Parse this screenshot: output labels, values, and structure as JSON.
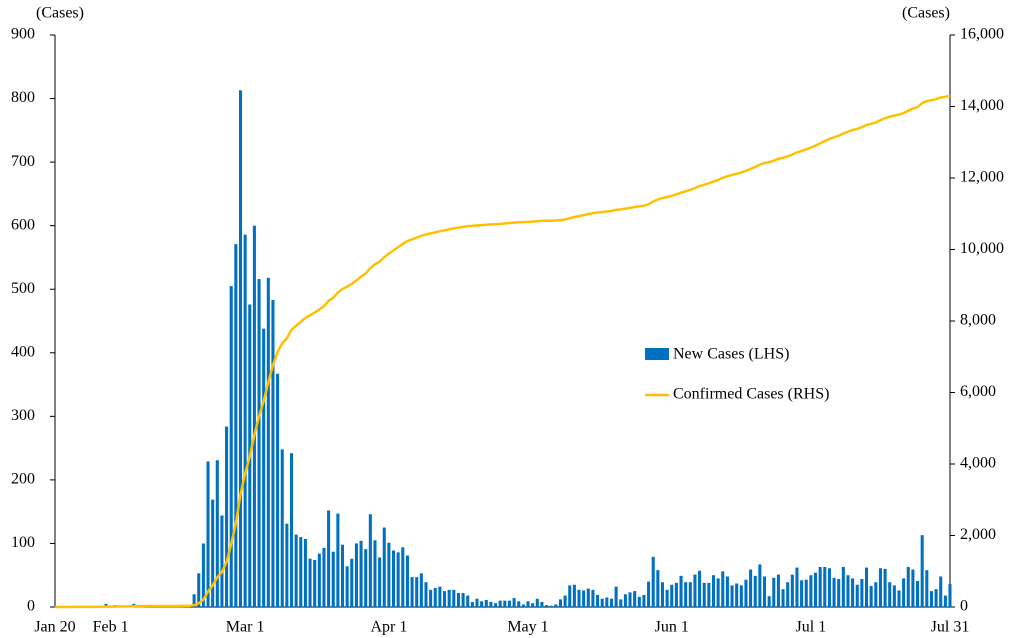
{
  "chart_data": {
    "type": "bar",
    "y_label": "(Cases)",
    "y2_label": "(Cases)",
    "categories": [
      "Jan 20",
      null,
      null,
      null,
      null,
      null,
      null,
      null,
      null,
      null,
      null,
      null,
      "Feb 1",
      null,
      null,
      null,
      null,
      null,
      null,
      null,
      null,
      null,
      null,
      null,
      null,
      null,
      null,
      null,
      null,
      null,
      null,
      null,
      null,
      null,
      null,
      null,
      null,
      null,
      null,
      null,
      null,
      "Mar 1",
      null,
      null,
      null,
      null,
      null,
      null,
      null,
      null,
      null,
      null,
      null,
      null,
      null,
      null,
      null,
      null,
      null,
      null,
      null,
      null,
      null,
      null,
      null,
      null,
      null,
      null,
      null,
      null,
      null,
      null,
      "Apr 1",
      null,
      null,
      null,
      null,
      null,
      null,
      null,
      null,
      null,
      null,
      null,
      null,
      null,
      null,
      null,
      null,
      null,
      null,
      null,
      null,
      null,
      null,
      null,
      null,
      null,
      null,
      null,
      null,
      null,
      "May 1",
      null,
      null,
      null,
      null,
      null,
      null,
      null,
      null,
      null,
      null,
      null,
      null,
      null,
      null,
      null,
      null,
      null,
      null,
      null,
      null,
      null,
      null,
      null,
      null,
      null,
      null,
      null,
      null,
      null,
      null,
      "Jun 1",
      null,
      null,
      null,
      null,
      null,
      null,
      null,
      null,
      null,
      null,
      null,
      null,
      null,
      null,
      null,
      null,
      null,
      null,
      null,
      null,
      null,
      null,
      null,
      null,
      null,
      null,
      null,
      null,
      null,
      "Jul 1",
      null,
      null,
      null,
      null,
      null,
      null,
      null,
      null,
      null,
      null,
      null,
      null,
      null,
      null,
      null,
      null,
      null,
      null,
      null,
      null,
      null,
      null,
      null,
      null,
      null,
      null,
      null,
      null,
      null,
      "Jul 31"
    ],
    "series": [
      {
        "name": "New Cases (LHS)",
        "type": "bar",
        "color": "#0070c0",
        "axis": "y",
        "values": [
          1,
          0,
          0,
          0,
          1,
          0,
          1,
          1,
          0,
          0,
          2,
          5,
          1,
          3,
          0,
          1,
          2,
          5,
          1,
          0,
          3,
          0,
          1,
          0,
          0,
          0,
          0,
          1,
          1,
          1,
          20,
          53,
          100,
          229,
          169,
          231,
          144,
          284,
          505,
          571,
          813,
          586,
          476,
          600,
          516,
          438,
          518,
          483,
          367,
          248,
          131,
          242,
          114,
          110,
          107,
          76,
          74,
          84,
          93,
          152,
          87,
          147,
          98,
          64,
          76,
          100,
          104,
          91,
          146,
          105,
          78,
          125,
          101,
          89,
          86,
          94,
          81,
          47,
          47,
          53,
          39,
          27,
          30,
          32,
          25,
          27,
          27,
          22,
          22,
          18,
          8,
          13,
          9,
          11,
          8,
          6,
          10,
          10,
          10,
          14,
          9,
          4,
          9,
          6,
          13,
          8,
          3,
          2,
          4,
          12,
          18,
          34,
          35,
          27,
          26,
          29,
          27,
          19,
          13,
          15,
          13,
          32,
          12,
          20,
          23,
          25,
          16,
          19,
          40,
          79,
          58,
          39,
          27,
          35,
          38,
          49,
          39,
          39,
          51,
          57,
          38,
          38,
          50,
          45,
          56,
          48,
          34,
          37,
          34,
          43,
          59,
          49,
          67,
          48,
          17,
          46,
          51,
          28,
          39,
          51,
          62,
          42,
          43,
          50,
          54,
          63,
          63,
          61,
          46,
          44,
          63,
          50,
          45,
          35,
          44,
          62,
          33,
          39,
          61,
          60,
          39,
          34,
          26,
          45,
          63,
          59,
          41,
          113,
          58,
          25,
          28,
          48,
          18,
          36
        ]
      },
      {
        "name": "Confirmed Cases (RHS)",
        "type": "line",
        "color": "#ffc000",
        "axis": "y2",
        "values": [
          1,
          1,
          1,
          1,
          2,
          2,
          3,
          4,
          4,
          4,
          6,
          11,
          12,
          15,
          15,
          16,
          18,
          23,
          24,
          24,
          27,
          27,
          28,
          28,
          28,
          28,
          28,
          29,
          30,
          31,
          51,
          104,
          204,
          433,
          602,
          833,
          977,
          1261,
          1766,
          2337,
          3150,
          3736,
          4212,
          4812,
          5328,
          5766,
          6284,
          6767,
          7134,
          7382,
          7513,
          7755,
          7869,
          7979,
          8086,
          8162,
          8236,
          8320,
          8413,
          8565,
          8652,
          8799,
          8897,
          8961,
          9037,
          9137,
          9241,
          9332,
          9478,
          9583,
          9661,
          9786,
          9887,
          9976,
          10062,
          10156,
          10237,
          10284,
          10331,
          10384,
          10423,
          10450,
          10480,
          10512,
          10537,
          10564,
          10591,
          10613,
          10635,
          10653,
          10661,
          10674,
          10683,
          10694,
          10702,
          10708,
          10718,
          10728,
          10738,
          10752,
          10761,
          10765,
          10774,
          10780,
          10793,
          10801,
          10804,
          10806,
          10810,
          10822,
          10840,
          10874,
          10909,
          10936,
          10962,
          10991,
          11018,
          11037,
          11050,
          11065,
          11078,
          11110,
          11122,
          11142,
          11165,
          11190,
          11206,
          11225,
          11265,
          11344,
          11402,
          11441,
          11468,
          11503,
          11541,
          11590,
          11629,
          11668,
          11719,
          11776,
          11814,
          11852,
          11902,
          11947,
          12003,
          12051,
          12085,
          12122,
          12156,
          12199,
          12258,
          12307,
          12374,
          12422,
          12439,
          12485,
          12536,
          12564,
          12603,
          12654,
          12716,
          12758,
          12801,
          12851,
          12905,
          12968,
          13031,
          13092,
          13138,
          13182,
          13245,
          13295,
          13340,
          13375,
          13419,
          13481,
          13514,
          13553,
          13614,
          13674,
          13713,
          13747,
          13773,
          13818,
          13881,
          13940,
          13981,
          14094,
          14152,
          14177,
          14205,
          14253,
          14271,
          14307
        ]
      }
    ],
    "ylim": [
      0,
      900
    ],
    "yticks": [
      0,
      100,
      200,
      300,
      400,
      500,
      600,
      700,
      800,
      900
    ],
    "y2lim": [
      0,
      16000
    ],
    "y2ticks": [
      0,
      {
        "value": 2000,
        "label": "2,000"
      },
      {
        "value": 4000,
        "label": "4,000"
      },
      {
        "value": 6000,
        "label": "6,000"
      },
      {
        "value": 8000,
        "label": "8,000"
      },
      {
        "value": 10000,
        "label": "10,000"
      },
      {
        "value": 12000,
        "label": "12,000"
      },
      {
        "value": 14000,
        "label": "14,000"
      },
      {
        "value": 16000,
        "label": "16,000"
      }
    ],
    "grid": false
  }
}
